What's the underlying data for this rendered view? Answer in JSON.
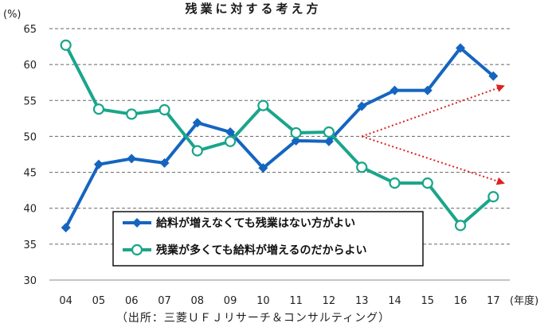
{
  "chart_data": {
    "type": "line",
    "title": "残業に対する考え方",
    "y_unit": "(%)",
    "x_unit": "(年度)",
    "source": "（出所：三菱ＵＦＪリサーチ＆コンサルティング）",
    "categories": [
      "04",
      "05",
      "06",
      "07",
      "08",
      "09",
      "10",
      "11",
      "12",
      "13",
      "14",
      "15",
      "16",
      "17"
    ],
    "ylim": [
      30,
      65
    ],
    "yticks": [
      30,
      35,
      40,
      45,
      50,
      55,
      60,
      65
    ],
    "grid": true,
    "legend_position": "bottom-center",
    "series": [
      {
        "name": "給料が増えなくても残業はない方がよい",
        "marker": "diamond",
        "color": "#1565c0",
        "values": [
          37.3,
          46.1,
          46.9,
          46.3,
          51.9,
          50.6,
          45.6,
          49.4,
          49.3,
          54.2,
          56.4,
          56.4,
          62.3,
          58.4
        ]
      },
      {
        "name": "残業が多くても給料が増えるのだからよい",
        "marker": "circle",
        "color": "#1aa58a",
        "values": [
          62.7,
          53.8,
          53.1,
          53.7,
          48.0,
          49.3,
          54.3,
          50.5,
          50.6,
          45.7,
          43.5,
          43.5,
          37.6,
          41.6
        ]
      }
    ],
    "arrow_color": "#e02020"
  }
}
